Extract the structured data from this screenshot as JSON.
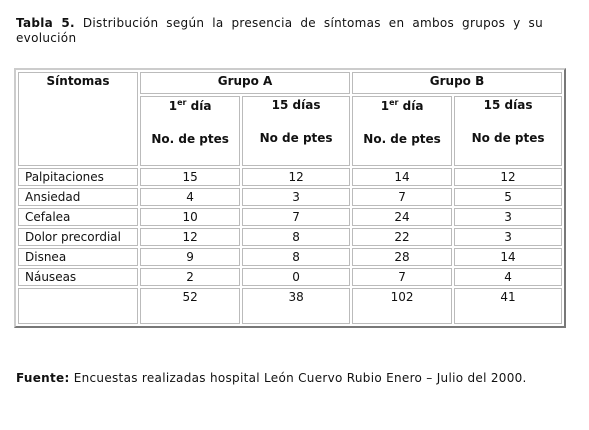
{
  "caption": {
    "label": "Tabla 5.",
    "text": "Distribución según la presencia de síntomas en ambos grupos y su evolución"
  },
  "table": {
    "corner": "Síntomas",
    "groups": [
      "Grupo A",
      "Grupo B"
    ],
    "periods": [
      {
        "num": "1",
        "sup": "er",
        "rest": " día",
        "unit": "No. de ptes"
      },
      {
        "text": "15 días",
        "unit": "No de ptes"
      },
      {
        "num": "1",
        "sup": "er",
        "rest": " día",
        "unit": "No. de ptes"
      },
      {
        "text": "15 días",
        "unit": "No de ptes"
      }
    ],
    "rows": [
      [
        "Palpitaciones",
        15,
        12,
        14,
        12
      ],
      [
        "Ansiedad",
        4,
        3,
        7,
        5
      ],
      [
        "Cefalea",
        10,
        7,
        24,
        3
      ],
      [
        "Dolor precordial",
        12,
        8,
        22,
        3
      ],
      [
        "Disnea",
        9,
        8,
        28,
        14
      ],
      [
        "Náuseas",
        2,
        0,
        7,
        4
      ]
    ],
    "totals": [
      52,
      38,
      102,
      41
    ]
  },
  "footer": {
    "label": "Fuente:",
    "text": "Encuestas realizadas hospital León Cuervo Rubio Enero – Julio del 2000."
  }
}
